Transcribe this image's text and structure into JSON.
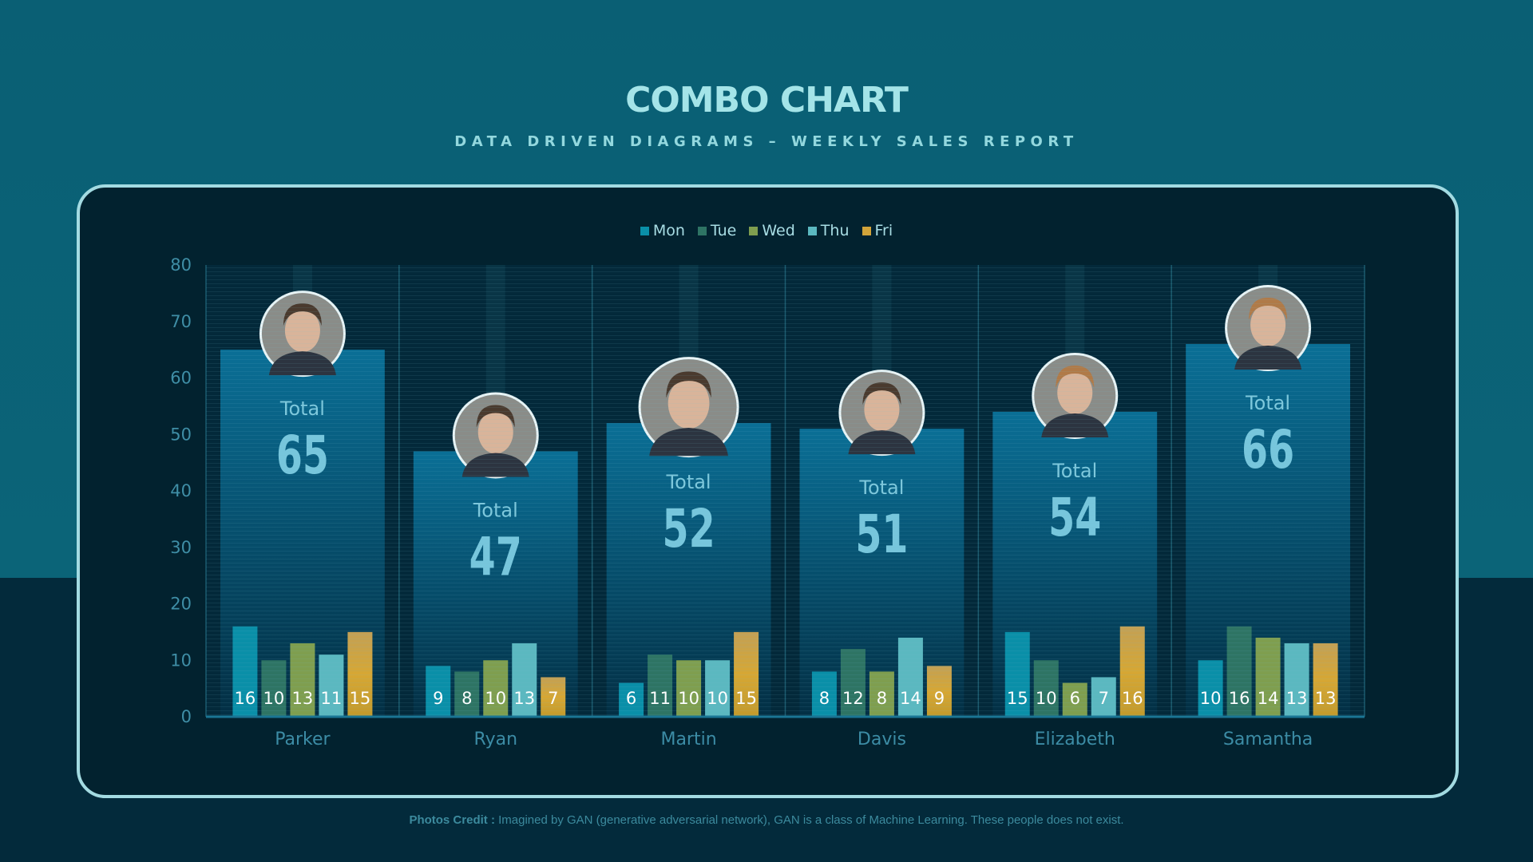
{
  "header": {
    "title": "COMBO CHART",
    "subtitle": "DATA DRIVEN DIAGRAMS – WEEKLY SALES REPORT"
  },
  "colors": {
    "Mon": "#0a8fa8",
    "Tue": "#2e7464",
    "Wed": "#7f9e4f",
    "Thu": "#5bb8c0",
    "Fri": "#d2a43a",
    "total_bar": "#0a6c92",
    "panel_border": "#a3dbe2"
  },
  "chart_data": {
    "type": "bar",
    "title": "COMBO CHART",
    "subtitle": "DATA DRIVEN DIAGRAMS – WEEKLY SALES REPORT",
    "categories": [
      "Parker",
      "Ryan",
      "Martin",
      "Davis",
      "Elizabeth",
      "Samantha"
    ],
    "ylim": [
      0,
      80
    ],
    "yticks": [
      "0",
      "10",
      "20",
      "30",
      "40",
      "50",
      "60",
      "70",
      "80"
    ],
    "grid": true,
    "legend_position": "top-center",
    "total_label": "Total",
    "totals": [
      65,
      47,
      52,
      51,
      54,
      66
    ],
    "series": [
      {
        "name": "Mon",
        "values": [
          16,
          9,
          6,
          8,
          15,
          10
        ]
      },
      {
        "name": "Tue",
        "values": [
          10,
          8,
          11,
          12,
          10,
          16
        ]
      },
      {
        "name": "Wed",
        "values": [
          13,
          10,
          10,
          8,
          6,
          14
        ]
      },
      {
        "name": "Thu",
        "values": [
          11,
          13,
          10,
          14,
          7,
          13
        ]
      },
      {
        "name": "Fri",
        "values": [
          15,
          7,
          15,
          9,
          16,
          13
        ]
      }
    ],
    "avatar_icon": "person-photo-icon"
  },
  "footer": {
    "credit_label": "Photos Credit :",
    "credit_text": " Imagined by GAN (generative adversarial network), GAN is a class of Machine Learning. These people does not exist."
  }
}
